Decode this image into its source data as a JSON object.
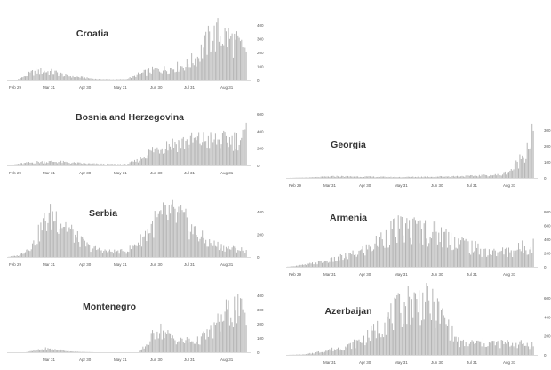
{
  "chart_data": [
    {
      "type": "bar",
      "title": "Croatia",
      "x_tick_labels": [
        "Feb 29",
        "Mar 31",
        "Apr 30",
        "May 31",
        "Jun 30",
        "Jul 31",
        "Aug 31"
      ],
      "y_tick_labels": [
        "0",
        "100",
        "200",
        "300",
        "400"
      ],
      "ylim": [
        0,
        400
      ],
      "bar_color": "#b3b3b3",
      "profile": [
        {
          "day": 0,
          "value": 0
        },
        {
          "day": 8,
          "value": 0
        },
        {
          "day": 14,
          "value": 25
        },
        {
          "day": 22,
          "value": 60
        },
        {
          "day": 30,
          "value": 65
        },
        {
          "day": 40,
          "value": 55
        },
        {
          "day": 50,
          "value": 30
        },
        {
          "day": 62,
          "value": 18
        },
        {
          "day": 75,
          "value": 5
        },
        {
          "day": 90,
          "value": 2
        },
        {
          "day": 100,
          "value": 4
        },
        {
          "day": 110,
          "value": 40
        },
        {
          "day": 122,
          "value": 70
        },
        {
          "day": 135,
          "value": 80
        },
        {
          "day": 150,
          "value": 110
        },
        {
          "day": 160,
          "value": 170
        },
        {
          "day": 170,
          "value": 300
        },
        {
          "day": 178,
          "value": 340
        },
        {
          "day": 186,
          "value": 310
        },
        {
          "day": 195,
          "value": 250
        },
        {
          "day": 201,
          "value": 210
        }
      ]
    },
    {
      "type": "bar",
      "title": "Bosnia and Herzegovina",
      "x_tick_labels": [
        "Feb 29",
        "Mar 31",
        "Apr 30",
        "May 31",
        "Jun 30",
        "Jul 31",
        "Aug 31"
      ],
      "y_tick_labels": [
        "0",
        "200",
        "400",
        "600"
      ],
      "ylim": [
        0,
        600
      ],
      "bar_color": "#b3b3b3",
      "profile": [
        {
          "day": 0,
          "value": 0
        },
        {
          "day": 10,
          "value": 20
        },
        {
          "day": 25,
          "value": 40
        },
        {
          "day": 40,
          "value": 45
        },
        {
          "day": 55,
          "value": 30
        },
        {
          "day": 70,
          "value": 20
        },
        {
          "day": 85,
          "value": 15
        },
        {
          "day": 100,
          "value": 15
        },
        {
          "day": 110,
          "value": 60
        },
        {
          "day": 122,
          "value": 180
        },
        {
          "day": 135,
          "value": 250
        },
        {
          "day": 150,
          "value": 280
        },
        {
          "day": 165,
          "value": 300
        },
        {
          "day": 180,
          "value": 290
        },
        {
          "day": 195,
          "value": 310
        },
        {
          "day": 201,
          "value": 360
        }
      ]
    },
    {
      "type": "bar",
      "title": "Serbia",
      "x_tick_labels": [
        "Feb 29",
        "Mar 31",
        "Apr 30",
        "May 31",
        "Jun 30",
        "Jul 31",
        "Aug 31"
      ],
      "y_tick_labels": [
        "0",
        "200",
        "400"
      ],
      "ylim": [
        0,
        400
      ],
      "bar_color": "#b3b3b3",
      "profile": [
        {
          "day": 0,
          "value": 0
        },
        {
          "day": 10,
          "value": 15
        },
        {
          "day": 22,
          "value": 120
        },
        {
          "day": 32,
          "value": 330
        },
        {
          "day": 40,
          "value": 370
        },
        {
          "day": 48,
          "value": 300
        },
        {
          "day": 58,
          "value": 170
        },
        {
          "day": 70,
          "value": 80
        },
        {
          "day": 85,
          "value": 50
        },
        {
          "day": 100,
          "value": 50
        },
        {
          "day": 112,
          "value": 150
        },
        {
          "day": 125,
          "value": 320
        },
        {
          "day": 135,
          "value": 380
        },
        {
          "day": 145,
          "value": 360
        },
        {
          "day": 155,
          "value": 250
        },
        {
          "day": 168,
          "value": 130
        },
        {
          "day": 185,
          "value": 80
        },
        {
          "day": 201,
          "value": 60
        }
      ]
    },
    {
      "type": "bar",
      "title": "Montenegro",
      "x_tick_labels": [
        "Mar 31",
        "Apr 30",
        "May 31",
        "Jun 30",
        "Jul 31",
        "Aug 31"
      ],
      "y_tick_labels": [
        "0",
        "100",
        "200",
        "300",
        "400"
      ],
      "ylim": [
        0,
        400
      ],
      "bar_color": "#b3b3b3",
      "profile": [
        {
          "day": 0,
          "value": 0
        },
        {
          "day": 15,
          "value": 0
        },
        {
          "day": 22,
          "value": 10
        },
        {
          "day": 32,
          "value": 25
        },
        {
          "day": 45,
          "value": 15
        },
        {
          "day": 58,
          "value": 3
        },
        {
          "day": 75,
          "value": 0
        },
        {
          "day": 110,
          "value": 0
        },
        {
          "day": 118,
          "value": 60
        },
        {
          "day": 126,
          "value": 170
        },
        {
          "day": 135,
          "value": 120
        },
        {
          "day": 145,
          "value": 80
        },
        {
          "day": 160,
          "value": 80
        },
        {
          "day": 172,
          "value": 150
        },
        {
          "day": 185,
          "value": 280
        },
        {
          "day": 193,
          "value": 310
        },
        {
          "day": 201,
          "value": 230
        }
      ]
    },
    {
      "type": "bar",
      "title": "Georgia",
      "x_tick_labels": [
        "Feb 29",
        "Mar 31",
        "Apr 30",
        "May 31",
        "Jun 30",
        "Jul 31",
        "Aug 31"
      ],
      "y_tick_labels": [
        "0",
        "100",
        "200",
        "300"
      ],
      "ylim": [
        0,
        300
      ],
      "bar_color": "#b3b3b3",
      "profile": [
        {
          "day": 0,
          "value": 0
        },
        {
          "day": 20,
          "value": 3
        },
        {
          "day": 40,
          "value": 10
        },
        {
          "day": 60,
          "value": 8
        },
        {
          "day": 90,
          "value": 5
        },
        {
          "day": 120,
          "value": 8
        },
        {
          "day": 150,
          "value": 12
        },
        {
          "day": 175,
          "value": 20
        },
        {
          "day": 185,
          "value": 60
        },
        {
          "day": 192,
          "value": 140
        },
        {
          "day": 197,
          "value": 220
        },
        {
          "day": 201,
          "value": 280
        }
      ]
    },
    {
      "type": "bar",
      "title": "Armenia",
      "x_tick_labels": [
        "Feb 29",
        "Mar 31",
        "Apr 30",
        "May 31",
        "Jun 30",
        "Jul 31",
        "Aug 31"
      ],
      "y_tick_labels": [
        "0",
        "200",
        "400",
        "600",
        "800"
      ],
      "ylim": [
        0,
        800
      ],
      "bar_color": "#b3b3b3",
      "profile": [
        {
          "day": 0,
          "value": 0
        },
        {
          "day": 15,
          "value": 30
        },
        {
          "day": 35,
          "value": 90
        },
        {
          "day": 55,
          "value": 180
        },
        {
          "day": 70,
          "value": 300
        },
        {
          "day": 85,
          "value": 520
        },
        {
          "day": 100,
          "value": 560
        },
        {
          "day": 112,
          "value": 540
        },
        {
          "day": 125,
          "value": 480
        },
        {
          "day": 140,
          "value": 380
        },
        {
          "day": 155,
          "value": 260
        },
        {
          "day": 170,
          "value": 200
        },
        {
          "day": 185,
          "value": 240
        },
        {
          "day": 201,
          "value": 330
        }
      ]
    },
    {
      "type": "bar",
      "title": "Azerbaijan",
      "x_tick_labels": [
        "Mar 31",
        "Apr 30",
        "May 31",
        "Jun 30",
        "Jul 31",
        "Aug 31"
      ],
      "y_tick_labels": [
        "0",
        "200",
        "400",
        "600"
      ],
      "ylim": [
        0,
        600
      ],
      "bar_color": "#b3b3b3",
      "profile": [
        {
          "day": 0,
          "value": 0
        },
        {
          "day": 15,
          "value": 5
        },
        {
          "day": 30,
          "value": 40
        },
        {
          "day": 50,
          "value": 90
        },
        {
          "day": 65,
          "value": 180
        },
        {
          "day": 80,
          "value": 350
        },
        {
          "day": 92,
          "value": 480
        },
        {
          "day": 100,
          "value": 560
        },
        {
          "day": 112,
          "value": 560
        },
        {
          "day": 122,
          "value": 480
        },
        {
          "day": 130,
          "value": 350
        },
        {
          "day": 136,
          "value": 200
        },
        {
          "day": 142,
          "value": 120
        },
        {
          "day": 160,
          "value": 130
        },
        {
          "day": 180,
          "value": 120
        },
        {
          "day": 201,
          "value": 110
        }
      ]
    }
  ]
}
